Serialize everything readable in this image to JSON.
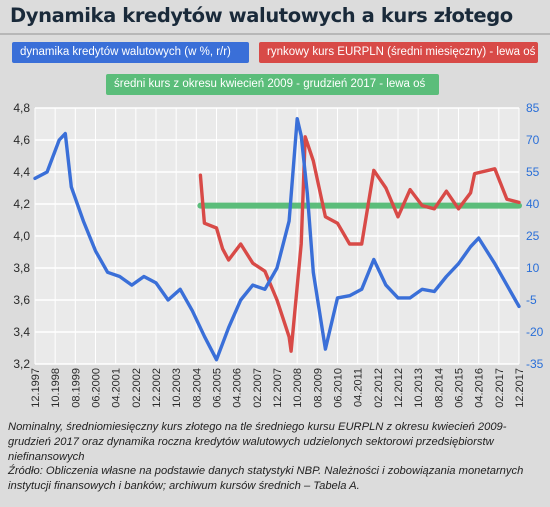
{
  "title": "Dynamika kredytów walutowych a kurs złotego",
  "notes": [
    "Nominalny, średniomiesięczny kurs złotego na tle średniego kursu EURPLN z okresu kwiecień 2009-grudzień 2017 oraz dynamika roczna kredytów walutowych udzielonych sektorowi przedsiębiorstw niefinansowych",
    "Źródło: Obliczenia własne na podstawie danych statystyki NBP. Należności i zobowiązania monetarnych instytucji finansowych i banków; archiwum kursów średnich – Tabela A."
  ],
  "chart_data": {
    "type": "line",
    "title": "Dynamika kredytów walutowych a kurs złotego",
    "x_ticks": [
      "12.1997",
      "10.1998",
      "08.1999",
      "06.2000",
      "04.2001",
      "02.2002",
      "12.2002",
      "10.2003",
      "08.2004",
      "06.2005",
      "04.2006",
      "02.2007",
      "12.2007",
      "10.2008",
      "08.2009",
      "06.2010",
      "04.2011",
      "02.2012",
      "12.2012",
      "10.2013",
      "08.2014",
      "06.2015",
      "04.2016",
      "02.2017",
      "12.2017"
    ],
    "x_range": [
      "12.1997",
      "12.2017"
    ],
    "y_left": {
      "ticks": [
        "3,2",
        "3,4",
        "3,6",
        "3,8",
        "4,0",
        "4,2",
        "4,4",
        "4,6",
        "4,8"
      ],
      "range": [
        3.2,
        4.8
      ],
      "label": ""
    },
    "y_right": {
      "ticks": [
        "-35",
        "-20",
        "-5",
        "10",
        "25",
        "40",
        "55",
        "70",
        "85"
      ],
      "range": [
        -35,
        85
      ],
      "label": ""
    },
    "grid": true,
    "series": [
      {
        "name": "dynamika kredytów walutowych (w %, r/r)",
        "axis": "right",
        "color": "#3a6fd8",
        "points": [
          [
            "12.1997",
            52
          ],
          [
            "06.1998",
            55
          ],
          [
            "12.1998",
            70
          ],
          [
            "03.1999",
            73
          ],
          [
            "06.1999",
            48
          ],
          [
            "12.1999",
            32
          ],
          [
            "06.2000",
            18
          ],
          [
            "12.2000",
            8
          ],
          [
            "06.2001",
            6
          ],
          [
            "12.2001",
            2
          ],
          [
            "06.2002",
            6
          ],
          [
            "12.2002",
            3
          ],
          [
            "06.2003",
            -5
          ],
          [
            "12.2003",
            0
          ],
          [
            "06.2004",
            -10
          ],
          [
            "12.2004",
            -22
          ],
          [
            "06.2005",
            -33
          ],
          [
            "12.2005",
            -18
          ],
          [
            "06.2006",
            -5
          ],
          [
            "12.2006",
            2
          ],
          [
            "06.2007",
            0
          ],
          [
            "12.2007",
            10
          ],
          [
            "06.2008",
            32
          ],
          [
            "10.2008",
            80
          ],
          [
            "12.2008",
            72
          ],
          [
            "03.2009",
            45
          ],
          [
            "06.2009",
            8
          ],
          [
            "12.2009",
            -28
          ],
          [
            "06.2010",
            -4
          ],
          [
            "12.2010",
            -3
          ],
          [
            "06.2011",
            0
          ],
          [
            "12.2011",
            14
          ],
          [
            "06.2012",
            2
          ],
          [
            "12.2012",
            -4
          ],
          [
            "06.2013",
            -4
          ],
          [
            "12.2013",
            0
          ],
          [
            "06.2014",
            -1
          ],
          [
            "12.2014",
            6
          ],
          [
            "06.2015",
            12
          ],
          [
            "12.2015",
            20
          ],
          [
            "04.2016",
            24
          ],
          [
            "12.2016",
            12
          ],
          [
            "06.2017",
            2
          ],
          [
            "12.2017",
            -8
          ]
        ]
      },
      {
        "name": "rynkowy kurs EURPLN (średni miesięczny) - lewa oś",
        "axis": "left",
        "color": "#d84a47",
        "points": [
          [
            "10.2004",
            4.38
          ],
          [
            "12.2004",
            4.08
          ],
          [
            "06.2005",
            4.05
          ],
          [
            "09.2005",
            3.92
          ],
          [
            "12.2005",
            3.85
          ],
          [
            "06.2006",
            3.95
          ],
          [
            "12.2006",
            3.83
          ],
          [
            "06.2007",
            3.78
          ],
          [
            "12.2007",
            3.6
          ],
          [
            "06.2008",
            3.37
          ],
          [
            "07.2008",
            3.28
          ],
          [
            "12.2008",
            3.95
          ],
          [
            "02.2009",
            4.62
          ],
          [
            "06.2009",
            4.47
          ],
          [
            "12.2009",
            4.12
          ],
          [
            "06.2010",
            4.08
          ],
          [
            "12.2010",
            3.95
          ],
          [
            "06.2011",
            3.95
          ],
          [
            "12.2011",
            4.41
          ],
          [
            "06.2012",
            4.3
          ],
          [
            "12.2012",
            4.12
          ],
          [
            "06.2013",
            4.29
          ],
          [
            "12.2013",
            4.19
          ],
          [
            "06.2014",
            4.17
          ],
          [
            "12.2014",
            4.28
          ],
          [
            "06.2015",
            4.17
          ],
          [
            "12.2015",
            4.27
          ],
          [
            "02.2016",
            4.39
          ],
          [
            "12.2016",
            4.42
          ],
          [
            "06.2017",
            4.23
          ],
          [
            "12.2017",
            4.21
          ]
        ]
      },
      {
        "name": "średni kurs z okresu kwiecień 2009 - grudzień 2017 - lewa oś",
        "axis": "left",
        "color": "#5bbd7a",
        "points": [
          [
            "10.2004",
            4.19
          ],
          [
            "12.2017",
            4.19
          ]
        ]
      }
    ]
  }
}
